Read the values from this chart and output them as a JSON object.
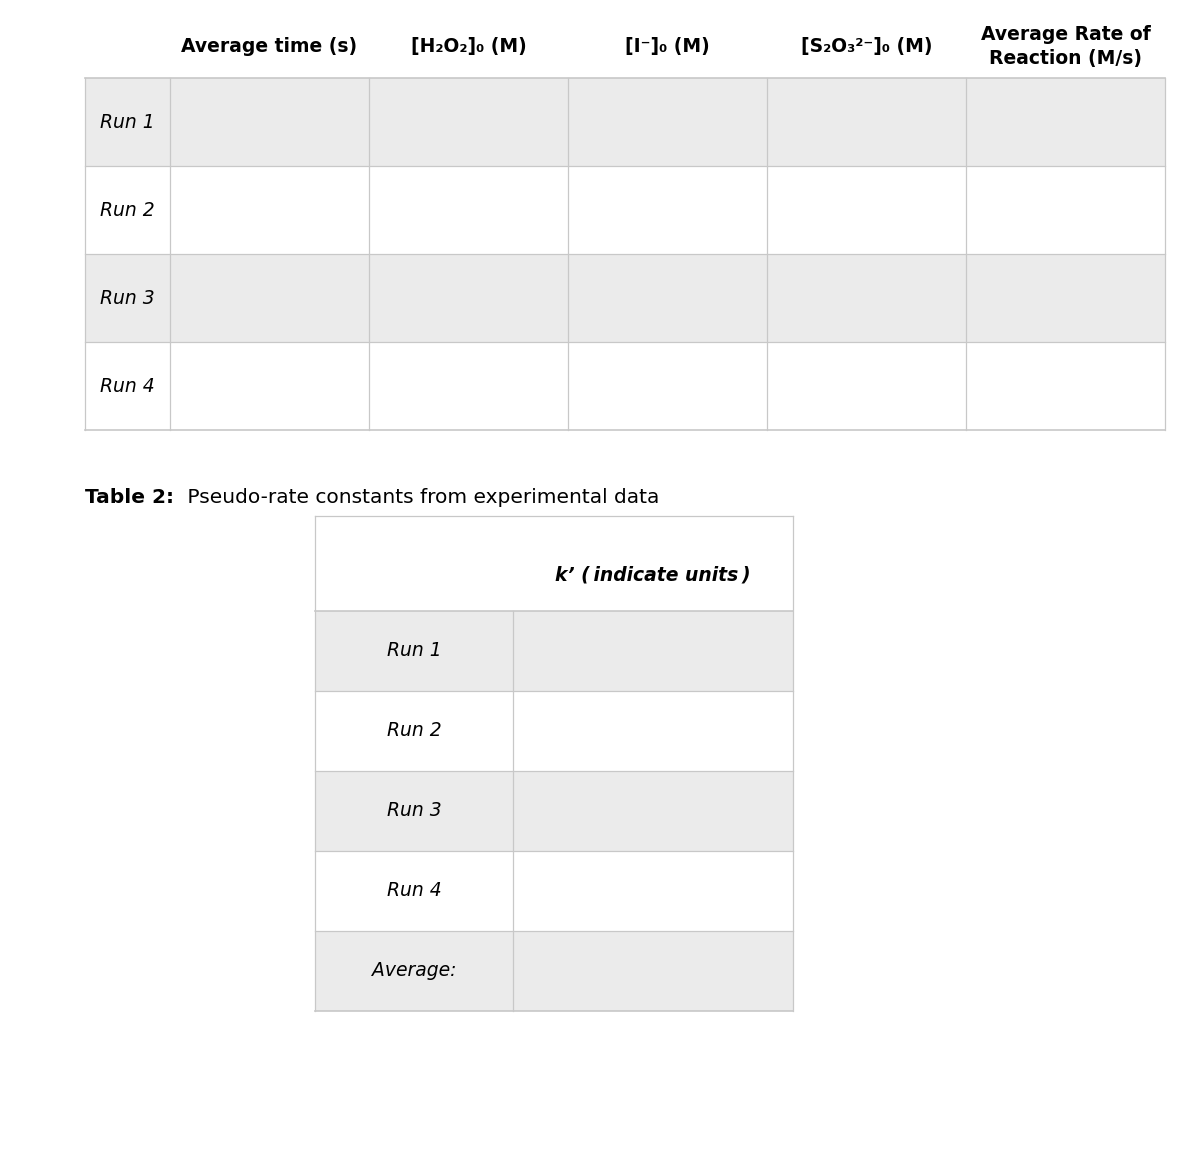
{
  "table1": {
    "col_headers": [
      "Average time (s)",
      "[H₂O₂]₀ (M)",
      "[I⁻]₀ (M)",
      "[S₂O₃²⁻]₀ (M)",
      "Average Rate of\nReaction (M/s)"
    ],
    "row_labels": [
      "Run 1",
      "Run 2",
      "Run 3",
      "Run 4"
    ],
    "row_bg_odd": "#ebebeb",
    "row_bg_even": "#ffffff",
    "grid_color": "#c8c8c8",
    "text_color": "#000000"
  },
  "table2": {
    "title_bold": "Table 2:",
    "title_rest": " Pseudo-rate constants from experimental data",
    "col_header_k": "k’ (",
    "col_header_k_italic": "indicate units",
    "col_header_k_end": ")",
    "row_labels": [
      "Run 1",
      "Run 2",
      "Run 3",
      "Run 4",
      "Average:"
    ],
    "row_bg_odd": "#ebebeb",
    "row_bg_even": "#ffffff",
    "grid_color": "#c8c8c8",
    "text_color": "#000000"
  },
  "background_color": "#ffffff"
}
